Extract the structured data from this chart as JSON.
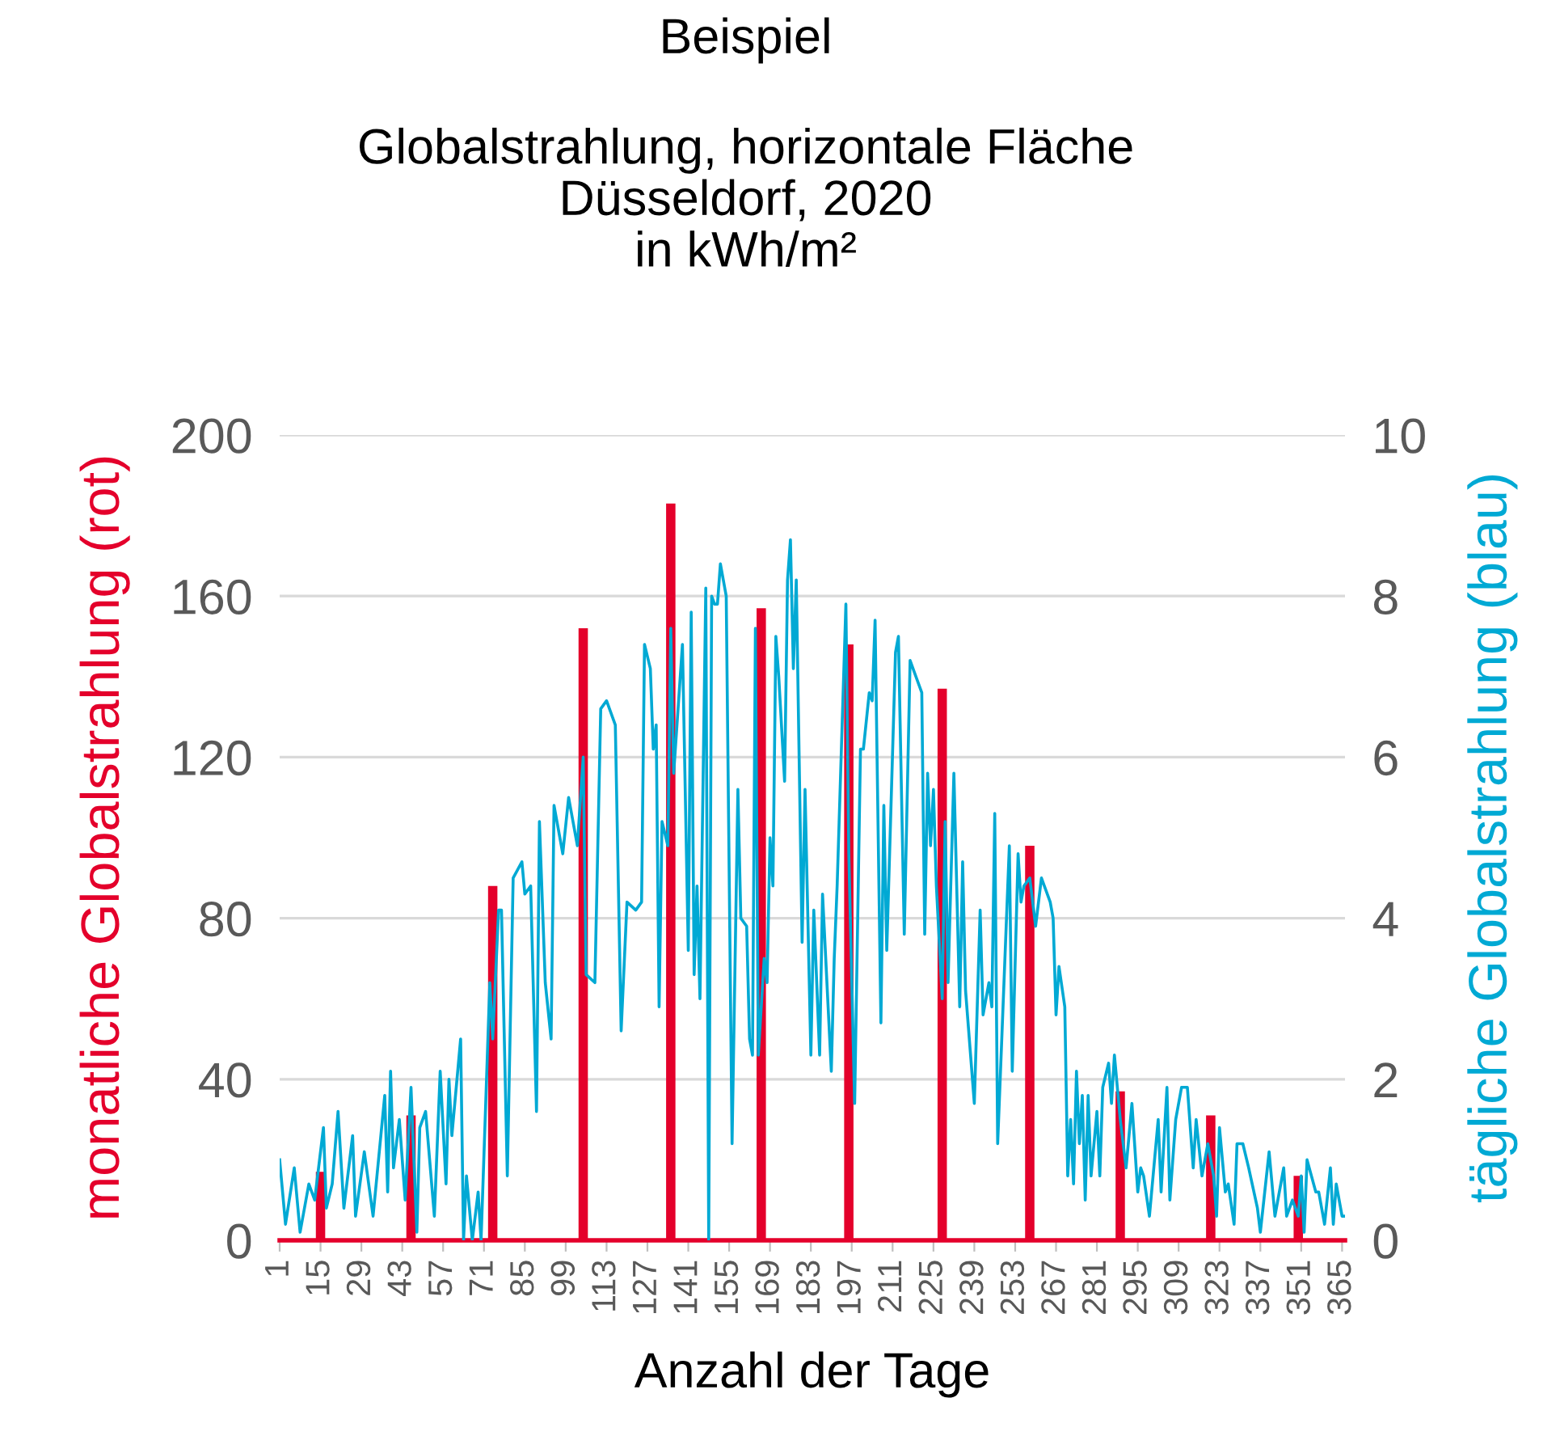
{
  "chart_data": {
    "type": "bar",
    "title": "Beispiel",
    "subtitle": "Globalstrahlung, horizontale Fläche\nDüsseldorf, 2020\nin kWh/m²",
    "xlabel": "Anzahl der Tage",
    "ylabel": "monatliche Globalstrahlung (rot)",
    "y2label": "tägliche Globalstrahlung (blau)",
    "xlim": [
      1,
      366
    ],
    "xticks": [
      1,
      15,
      29,
      43,
      57,
      71,
      85,
      99,
      113,
      127,
      141,
      155,
      169,
      183,
      197,
      211,
      225,
      239,
      253,
      267,
      281,
      295,
      309,
      323,
      337,
      351,
      365
    ],
    "ylim": [
      0,
      200
    ],
    "yticks": [
      0,
      40,
      80,
      120,
      160,
      200
    ],
    "y2lim": [
      0,
      10
    ],
    "y2ticks": [
      0,
      2,
      4,
      6,
      8,
      10
    ],
    "grid": "y",
    "legend": false,
    "series": [
      {
        "color": "#e4002b",
        "x": [
          15,
          46,
          74,
          105,
          135,
          166,
          196,
          228,
          258,
          289,
          320,
          350
        ],
        "values": [
          17,
          31,
          88,
          152,
          183,
          157,
          148,
          137,
          98,
          37,
          31,
          16
        ]
      },
      {
        "type": "line",
        "axis": "y2",
        "color": "#00a9d4",
        "x": [
          1,
          3,
          6,
          8,
          11,
          13,
          14,
          16,
          17,
          19,
          21,
          23,
          26,
          27,
          30,
          33,
          37,
          38,
          39,
          40,
          42,
          44,
          46,
          48,
          49,
          51,
          54,
          56,
          58,
          59,
          60,
          63,
          64,
          65,
          67,
          69,
          70,
          73,
          74,
          76,
          77,
          79,
          81,
          84,
          85,
          87,
          89,
          90,
          92,
          94,
          95,
          98,
          100,
          103,
          105,
          106,
          109,
          111,
          113,
          116,
          118,
          120,
          123,
          125,
          126,
          128,
          129,
          130,
          131,
          132,
          134,
          135,
          136,
          139,
          141,
          142,
          143,
          144,
          145,
          147,
          148,
          149,
          150,
          151,
          152,
          154,
          156,
          158,
          159,
          161,
          162,
          163,
          164,
          165,
          167,
          168,
          169,
          170,
          171,
          172,
          174,
          175,
          176,
          177,
          178,
          180,
          181,
          183,
          184,
          186,
          187,
          190,
          191,
          192,
          195,
          196,
          198,
          200,
          201,
          203,
          204,
          205,
          207,
          208,
          209,
          212,
          213,
          215,
          217,
          219,
          221,
          222,
          223,
          224,
          225,
          226,
          228,
          229,
          230,
          232,
          234,
          235,
          236,
          239,
          241,
          242,
          244,
          245,
          246,
          247,
          251,
          252,
          254,
          255,
          256,
          258,
          260,
          262,
          265,
          266,
          267,
          268,
          270,
          271,
          272,
          273,
          274,
          275,
          276,
          277,
          278,
          279,
          281,
          282,
          283,
          285,
          286,
          287,
          289,
          291,
          292,
          293,
          295,
          296,
          297,
          299,
          301,
          302,
          303,
          305,
          306,
          308,
          310,
          312,
          314,
          315,
          317,
          319,
          321,
          322,
          323,
          325,
          326,
          328,
          329,
          331,
          333,
          336,
          337,
          340,
          342,
          345,
          346,
          348,
          350,
          351,
          352,
          353,
          356,
          357,
          359,
          361,
          362,
          363,
          365,
          366
        ],
        "values": [
          1.0,
          0.2,
          0.9,
          0.1,
          0.7,
          0.5,
          0.8,
          1.4,
          0.4,
          0.7,
          1.6,
          0.4,
          1.3,
          0.3,
          1.1,
          0.3,
          1.8,
          0.6,
          2.1,
          0.9,
          1.5,
          0.5,
          1.9,
          0.1,
          1.4,
          1.6,
          0.3,
          2.1,
          0.7,
          2.0,
          1.3,
          2.5,
          0.0,
          0.8,
          0.0,
          0.6,
          0.0,
          3.2,
          2.5,
          4.1,
          4.1,
          0.8,
          4.5,
          4.7,
          4.3,
          4.4,
          1.6,
          5.2,
          3.2,
          2.5,
          5.4,
          4.8,
          5.5,
          4.9,
          6.0,
          3.3,
          3.2,
          6.6,
          6.7,
          6.4,
          2.6,
          4.2,
          4.1,
          4.2,
          7.4,
          7.1,
          6.1,
          6.4,
          2.9,
          5.2,
          4.9,
          7.6,
          5.8,
          7.4,
          3.6,
          7.8,
          3.3,
          4.4,
          3.0,
          8.1,
          0.0,
          8.0,
          7.9,
          7.9,
          8.4,
          8.0,
          1.2,
          5.6,
          4.0,
          3.9,
          2.5,
          2.3,
          7.6,
          2.3,
          3.5,
          3.2,
          5.0,
          4.4,
          7.5,
          7.0,
          5.7,
          8.2,
          8.7,
          7.1,
          8.2,
          3.7,
          5.6,
          2.3,
          4.1,
          2.3,
          4.3,
          2.1,
          3.5,
          4.4,
          7.9,
          4.8,
          1.7,
          6.1,
          6.1,
          6.8,
          6.7,
          7.7,
          2.7,
          5.4,
          3.6,
          7.3,
          7.5,
          3.8,
          7.2,
          7.0,
          6.8,
          3.8,
          5.8,
          4.9,
          5.6,
          4.4,
          3.0,
          5.2,
          3.2,
          5.8,
          2.9,
          4.7,
          3.1,
          1.7,
          4.1,
          2.8,
          3.2,
          2.9,
          5.3,
          1.2,
          4.9,
          2.1,
          4.8,
          4.2,
          4.4,
          4.5,
          3.9,
          4.5,
          4.2,
          4.0,
          2.8,
          3.4,
          2.9,
          0.8,
          1.5,
          0.7,
          2.1,
          1.2,
          1.8,
          0.5,
          1.8,
          0.8,
          1.6,
          0.8,
          1.9,
          2.2,
          1.7,
          2.3,
          1.5,
          0.9,
          1.3,
          1.7,
          0.6,
          0.9,
          0.8,
          0.3,
          1.1,
          1.5,
          0.6,
          1.9,
          0.5,
          1.5,
          1.9,
          1.9,
          0.9,
          1.5,
          0.8,
          1.2,
          0.8,
          0.3,
          1.4,
          0.6,
          0.7,
          0.2,
          1.2,
          1.2,
          0.9,
          0.4,
          0.1,
          1.1,
          0.3,
          0.9,
          0.3,
          0.5,
          0.3,
          0.8,
          0.1,
          1.0,
          0.6,
          0.6,
          0.2,
          0.9,
          0.2,
          0.7,
          0.3,
          0.3
        ]
      }
    ]
  }
}
